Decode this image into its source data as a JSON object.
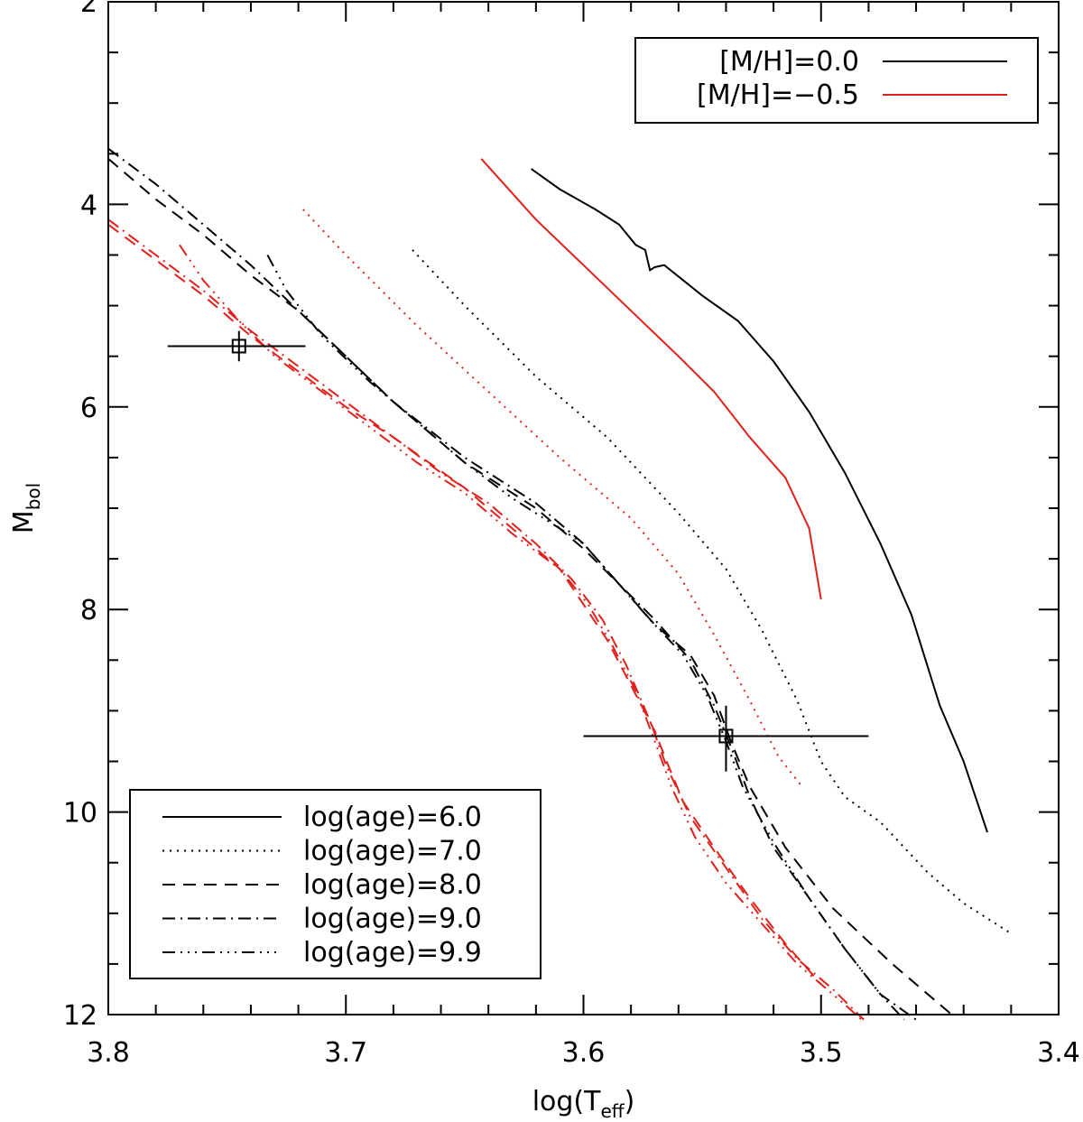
{
  "chart_data": {
    "type": "line",
    "xlabel": "log(T",
    "xlabel_sub": "eff",
    "xlabel_tail": ")",
    "ylabel": "M",
    "ylabel_sub": "bol",
    "xlim": [
      3.8,
      3.4
    ],
    "ylim": [
      12,
      2
    ],
    "x_ticks": [
      "3.8",
      "3.7",
      "3.6",
      "3.5",
      "3.4"
    ],
    "y_ticks": [
      "2",
      "4",
      "6",
      "8",
      "10",
      "12"
    ],
    "grid": false,
    "colors": {
      "solar": "#000000",
      "metal_poor": "#e0201a"
    },
    "legend_metallicity": {
      "placement": "top-right",
      "entries": [
        {
          "label": "[M/H]=0.0",
          "color": "#000000"
        },
        {
          "label": "[M/H]=−0.5",
          "color": "#e0201a"
        }
      ]
    },
    "legend_age": {
      "placement": "bottom-left",
      "entries": [
        {
          "label": "log(age)=6.0",
          "style": "solid"
        },
        {
          "label": "log(age)=7.0",
          "style": "dotted"
        },
        {
          "label": "log(age)=8.0",
          "style": "dashed"
        },
        {
          "label": "log(age)=9.0",
          "style": "dashdot"
        },
        {
          "label": "log(age)=9.9",
          "style": "dashdotdotdot"
        }
      ]
    },
    "series": [
      {
        "metallicity": "[M/H]=0.0",
        "age": "log(age)=6.0",
        "color": "#000000",
        "style": "solid",
        "points": [
          [
            3.622,
            3.65
          ],
          [
            3.61,
            3.85
          ],
          [
            3.595,
            4.05
          ],
          [
            3.585,
            4.2
          ],
          [
            3.578,
            4.4
          ],
          [
            3.574,
            4.45
          ],
          [
            3.572,
            4.65
          ],
          [
            3.57,
            4.62
          ],
          [
            3.566,
            4.6
          ],
          [
            3.55,
            4.9
          ],
          [
            3.535,
            5.15
          ],
          [
            3.52,
            5.55
          ],
          [
            3.505,
            6.05
          ],
          [
            3.49,
            6.65
          ],
          [
            3.475,
            7.35
          ],
          [
            3.462,
            8.05
          ],
          [
            3.45,
            8.95
          ],
          [
            3.44,
            9.5
          ],
          [
            3.43,
            10.2
          ]
        ]
      },
      {
        "metallicity": "[M/H]=0.0",
        "age": "log(age)=7.0",
        "color": "#000000",
        "style": "dotted",
        "points": [
          [
            3.672,
            4.45
          ],
          [
            3.65,
            5.0
          ],
          [
            3.62,
            5.7
          ],
          [
            3.59,
            6.3
          ],
          [
            3.56,
            7.05
          ],
          [
            3.54,
            7.6
          ],
          [
            3.525,
            8.2
          ],
          [
            3.51,
            8.9
          ],
          [
            3.5,
            9.5
          ],
          [
            3.49,
            9.85
          ],
          [
            3.475,
            10.1
          ],
          [
            3.455,
            10.6
          ],
          [
            3.44,
            10.9
          ],
          [
            3.42,
            11.2
          ]
        ]
      },
      {
        "metallicity": "[M/H]=0.0",
        "age": "log(age)=8.0",
        "color": "#000000",
        "style": "dashed",
        "points": [
          [
            3.8,
            3.55
          ],
          [
            3.78,
            3.95
          ],
          [
            3.76,
            4.3
          ],
          [
            3.74,
            4.7
          ],
          [
            3.72,
            5.05
          ],
          [
            3.7,
            5.5
          ],
          [
            3.68,
            5.95
          ],
          [
            3.65,
            6.55
          ],
          [
            3.62,
            7.0
          ],
          [
            3.6,
            7.4
          ],
          [
            3.585,
            7.75
          ],
          [
            3.57,
            8.15
          ],
          [
            3.555,
            8.45
          ],
          [
            3.545,
            8.85
          ],
          [
            3.538,
            9.3
          ],
          [
            3.53,
            9.75
          ],
          [
            3.515,
            10.35
          ],
          [
            3.495,
            10.95
          ],
          [
            3.47,
            11.5
          ],
          [
            3.445,
            12.0
          ]
        ]
      },
      {
        "metallicity": "[M/H]=0.0",
        "age": "log(age)=9.0",
        "color": "#000000",
        "style": "dashdot",
        "points": [
          [
            3.8,
            3.45
          ],
          [
            3.78,
            3.8
          ],
          [
            3.76,
            4.2
          ],
          [
            3.74,
            4.6
          ],
          [
            3.72,
            5.05
          ],
          [
            3.7,
            5.5
          ],
          [
            3.68,
            5.95
          ],
          [
            3.65,
            6.5
          ],
          [
            3.62,
            6.95
          ],
          [
            3.6,
            7.35
          ],
          [
            3.585,
            7.75
          ],
          [
            3.57,
            8.1
          ],
          [
            3.555,
            8.5
          ],
          [
            3.545,
            8.95
          ],
          [
            3.538,
            9.35
          ],
          [
            3.53,
            9.85
          ],
          [
            3.52,
            10.35
          ],
          [
            3.505,
            10.85
          ],
          [
            3.49,
            11.35
          ],
          [
            3.475,
            11.8
          ],
          [
            3.46,
            12.05
          ]
        ]
      },
      {
        "metallicity": "[M/H]=0.0",
        "age": "log(age)=9.9",
        "color": "#000000",
        "style": "dashdotdotdot",
        "points": [
          [
            3.733,
            4.5
          ],
          [
            3.725,
            4.85
          ],
          [
            3.71,
            5.3
          ],
          [
            3.69,
            5.75
          ],
          [
            3.67,
            6.15
          ],
          [
            3.65,
            6.55
          ],
          [
            3.63,
            6.9
          ],
          [
            3.6,
            7.35
          ],
          [
            3.585,
            7.75
          ],
          [
            3.572,
            8.1
          ],
          [
            3.558,
            8.45
          ],
          [
            3.548,
            8.85
          ],
          [
            3.54,
            9.3
          ],
          [
            3.533,
            9.75
          ],
          [
            3.52,
            10.3
          ],
          [
            3.505,
            10.85
          ],
          [
            3.49,
            11.35
          ],
          [
            3.475,
            11.8
          ],
          [
            3.465,
            12.05
          ]
        ]
      },
      {
        "metallicity": "[M/H]=−0.5",
        "age": "log(age)=6.0",
        "color": "#e0201a",
        "style": "solid",
        "points": [
          [
            3.643,
            3.55
          ],
          [
            3.62,
            4.15
          ],
          [
            3.6,
            4.6
          ],
          [
            3.58,
            5.05
          ],
          [
            3.56,
            5.5
          ],
          [
            3.545,
            5.85
          ],
          [
            3.53,
            6.3
          ],
          [
            3.515,
            6.7
          ],
          [
            3.505,
            7.2
          ],
          [
            3.5,
            7.9
          ]
        ]
      },
      {
        "metallicity": "[M/H]=−0.5",
        "age": "log(age)=7.0",
        "color": "#e0201a",
        "style": "dotted",
        "points": [
          [
            3.718,
            4.05
          ],
          [
            3.7,
            4.5
          ],
          [
            3.67,
            5.2
          ],
          [
            3.64,
            5.85
          ],
          [
            3.61,
            6.5
          ],
          [
            3.58,
            7.1
          ],
          [
            3.56,
            7.65
          ],
          [
            3.545,
            8.25
          ],
          [
            3.53,
            8.9
          ],
          [
            3.518,
            9.45
          ],
          [
            3.508,
            9.75
          ]
        ]
      },
      {
        "metallicity": "[M/H]=−0.5",
        "age": "log(age)=8.0",
        "color": "#e0201a",
        "style": "dashed",
        "points": [
          [
            3.8,
            4.2
          ],
          [
            3.78,
            4.55
          ],
          [
            3.76,
            4.9
          ],
          [
            3.74,
            5.3
          ],
          [
            3.72,
            5.65
          ],
          [
            3.7,
            6.0
          ],
          [
            3.68,
            6.3
          ],
          [
            3.65,
            6.8
          ],
          [
            3.63,
            7.2
          ],
          [
            3.61,
            7.6
          ],
          [
            3.6,
            7.95
          ],
          [
            3.59,
            8.3
          ],
          [
            3.58,
            8.75
          ],
          [
            3.57,
            9.2
          ],
          [
            3.565,
            9.5
          ],
          [
            3.558,
            9.9
          ],
          [
            3.545,
            10.35
          ],
          [
            3.53,
            10.85
          ],
          [
            3.515,
            11.3
          ],
          [
            3.5,
            11.7
          ]
        ]
      },
      {
        "metallicity": "[M/H]=−0.5",
        "age": "log(age)=9.0",
        "color": "#e0201a",
        "style": "dashdot",
        "points": [
          [
            3.8,
            4.15
          ],
          [
            3.78,
            4.5
          ],
          [
            3.76,
            4.85
          ],
          [
            3.74,
            5.25
          ],
          [
            3.72,
            5.6
          ],
          [
            3.7,
            5.95
          ],
          [
            3.68,
            6.3
          ],
          [
            3.66,
            6.65
          ],
          [
            3.64,
            6.95
          ],
          [
            3.62,
            7.35
          ],
          [
            3.605,
            7.7
          ],
          [
            3.592,
            8.1
          ],
          [
            3.582,
            8.55
          ],
          [
            3.572,
            9.1
          ],
          [
            3.565,
            9.55
          ],
          [
            3.555,
            10.05
          ],
          [
            3.54,
            10.55
          ],
          [
            3.525,
            11.05
          ],
          [
            3.51,
            11.45
          ],
          [
            3.495,
            11.75
          ],
          [
            3.482,
            12.05
          ]
        ]
      },
      {
        "metallicity": "[M/H]=−0.5",
        "age": "log(age)=9.9",
        "color": "#e0201a",
        "style": "dashdotdotdot",
        "points": [
          [
            3.77,
            4.4
          ],
          [
            3.76,
            4.75
          ],
          [
            3.745,
            5.15
          ],
          [
            3.73,
            5.5
          ],
          [
            3.71,
            5.85
          ],
          [
            3.69,
            6.2
          ],
          [
            3.67,
            6.55
          ],
          [
            3.65,
            6.85
          ],
          [
            3.63,
            7.25
          ],
          [
            3.61,
            7.6
          ],
          [
            3.598,
            7.95
          ],
          [
            3.588,
            8.35
          ],
          [
            3.578,
            8.8
          ],
          [
            3.57,
            9.3
          ],
          [
            3.563,
            9.75
          ],
          [
            3.553,
            10.25
          ],
          [
            3.54,
            10.7
          ],
          [
            3.525,
            11.1
          ],
          [
            3.51,
            11.5
          ],
          [
            3.49,
            11.9
          ],
          [
            3.483,
            12.05
          ]
        ]
      }
    ],
    "datapoints": [
      {
        "x": 3.745,
        "y": 5.4,
        "x_err_low": 3.775,
        "x_err_high": 3.717,
        "y_err_low": 5.25,
        "y_err_high": 5.55
      },
      {
        "x": 3.54,
        "y": 9.25,
        "x_err_low": 3.6,
        "x_err_high": 3.48,
        "y_err_low": 8.95,
        "y_err_high": 9.6
      }
    ]
  }
}
